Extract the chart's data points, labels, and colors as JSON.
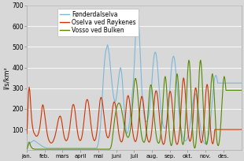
{
  "title_ylabel": "l/s/km²",
  "ylim": [
    0,
    700
  ],
  "yticks": [
    100,
    200,
    300,
    400,
    500,
    600,
    700
  ],
  "months": [
    "jan.",
    "feb.",
    "mars",
    "april",
    "mai",
    "juni",
    "juli",
    "aug.",
    "sep.",
    "okt.",
    "nov.",
    "des."
  ],
  "legend": [
    {
      "label": "Fønderdalselva",
      "color": "#7ab8d9"
    },
    {
      "label": "Oselva ved Røykenes",
      "color": "#cc3300"
    },
    {
      "label": "Vosso ved Bulken",
      "color": "#558800"
    }
  ],
  "background_color": "#d8d8d8",
  "grid_color": "#ffffff",
  "fonderdalselva": [
    20,
    22,
    25,
    28,
    30,
    32,
    35,
    38,
    40,
    42,
    44,
    46,
    48,
    46,
    44,
    42,
    40,
    38,
    36,
    34,
    32,
    30,
    28,
    26,
    24,
    22,
    20,
    18,
    16,
    15,
    14,
    13,
    12,
    11,
    11,
    10,
    10,
    10,
    10,
    10,
    10,
    10,
    10,
    10,
    10,
    10,
    10,
    10,
    10,
    10,
    10,
    10,
    10,
    10,
    10,
    10,
    10,
    10,
    10,
    10,
    10,
    10,
    10,
    10,
    10,
    10,
    10,
    10,
    10,
    10,
    10,
    10,
    10,
    10,
    10,
    10,
    10,
    10,
    10,
    10,
    10,
    10,
    10,
    10,
    10,
    10,
    10,
    10,
    10,
    10,
    10,
    10,
    10,
    10,
    10,
    10,
    10,
    10,
    10,
    10,
    10,
    10,
    10,
    10,
    10,
    10,
    10,
    10,
    10,
    10,
    10,
    10,
    10,
    10,
    10,
    10,
    10,
    10,
    10,
    10,
    20,
    30,
    45,
    65,
    90,
    120,
    160,
    200,
    250,
    300,
    350,
    390,
    430,
    460,
    480,
    490,
    500,
    510,
    500,
    480,
    460,
    430,
    400,
    370,
    340,
    310,
    285,
    265,
    250,
    240,
    235,
    240,
    255,
    275,
    300,
    325,
    350,
    375,
    390,
    400,
    390,
    370,
    340,
    300,
    255,
    210,
    170,
    135,
    110,
    90,
    80,
    85,
    95,
    110,
    130,
    155,
    180,
    210,
    240,
    270,
    300,
    340,
    390,
    450,
    520,
    590,
    640,
    675,
    680,
    660,
    620,
    565,
    500,
    435,
    370,
    310,
    260,
    220,
    190,
    170,
    155,
    145,
    140,
    138,
    140,
    145,
    155,
    170,
    190,
    215,
    245,
    280,
    320,
    360,
    400,
    430,
    455,
    470,
    475,
    470,
    455,
    430,
    400,
    365,
    325,
    285,
    248,
    215,
    185,
    160,
    140,
    125,
    115,
    108,
    105,
    108,
    115,
    128,
    145,
    168,
    195,
    228,
    265,
    305,
    345,
    382,
    412,
    435,
    450,
    455,
    450,
    435,
    410,
    380,
    345,
    308,
    270,
    232,
    197,
    167,
    140,
    118,
    100,
    85,
    72,
    62,
    54,
    49,
    46,
    45,
    46,
    49,
    55,
    63,
    74,
    88,
    105,
    124,
    145,
    168,
    192,
    215,
    235,
    252,
    265,
    272,
    274,
    270,
    260,
    245,
    226,
    203,
    178,
    153,
    128,
    106,
    87,
    71,
    58,
    48,
    40,
    35,
    32,
    31,
    33,
    37,
    43,
    52,
    64,
    80,
    100,
    123,
    150,
    180,
    213,
    248,
    280,
    310,
    335,
    350,
    360,
    362,
    357,
    344,
    325
  ],
  "oselva": [
    80,
    130,
    200,
    280,
    305,
    290,
    250,
    200,
    160,
    130,
    110,
    95,
    85,
    80,
    75,
    70,
    68,
    68,
    70,
    75,
    83,
    95,
    110,
    130,
    155,
    180,
    210,
    220,
    215,
    200,
    180,
    158,
    135,
    112,
    92,
    75,
    62,
    52,
    45,
    40,
    37,
    35,
    35,
    37,
    40,
    45,
    52,
    60,
    70,
    82,
    95,
    110,
    125,
    140,
    152,
    160,
    165,
    165,
    158,
    145,
    128,
    108,
    88,
    72,
    60,
    52,
    47,
    46,
    48,
    53,
    62,
    75,
    92,
    112,
    135,
    160,
    185,
    205,
    218,
    222,
    218,
    205,
    185,
    160,
    135,
    110,
    90,
    73,
    60,
    52,
    47,
    47,
    51,
    60,
    73,
    92,
    115,
    142,
    170,
    198,
    222,
    238,
    245,
    245,
    237,
    222,
    200,
    175,
    148,
    122,
    99,
    80,
    65,
    55,
    48,
    46,
    49,
    57,
    71,
    90,
    115,
    145,
    177,
    208,
    234,
    250,
    256,
    252,
    238,
    217,
    192,
    165,
    139,
    115,
    95,
    80,
    68,
    62,
    60,
    63,
    72,
    87,
    108,
    133,
    160,
    187,
    210,
    226,
    234,
    233,
    224,
    207,
    185,
    160,
    133,
    108,
    86,
    68,
    55,
    46,
    41,
    40,
    44,
    54,
    70,
    92,
    120,
    153,
    188,
    220,
    245,
    260,
    265,
    258,
    242,
    220,
    193,
    163,
    134,
    108,
    86,
    68,
    55,
    46,
    42,
    43,
    50,
    63,
    82,
    108,
    138,
    171,
    204,
    232,
    252,
    261,
    258,
    245,
    224,
    197,
    168,
    139,
    112,
    89,
    70,
    55,
    45,
    40,
    39,
    44,
    54,
    71,
    94,
    123,
    157,
    193,
    227,
    255,
    276,
    287,
    287,
    277,
    257,
    230,
    197,
    163,
    130,
    100,
    75,
    55,
    40,
    31,
    28,
    31,
    40,
    57,
    80,
    110,
    145,
    183,
    220,
    252,
    275,
    285,
    283,
    269,
    244,
    212,
    176,
    140,
    107,
    79,
    57,
    41,
    31,
    28,
    31,
    42,
    60,
    86,
    120,
    163,
    213,
    262,
    305,
    336,
    350,
    342,
    316,
    277,
    232,
    186,
    143,
    107,
    79,
    59,
    47,
    43,
    47,
    60,
    82,
    113,
    152,
    197,
    241,
    278,
    300,
    302,
    285,
    252,
    209,
    163,
    120,
    84,
    59,
    43,
    36,
    38,
    50,
    71,
    103,
    143,
    190,
    238,
    280,
    309,
    319,
    309,
    281,
    240,
    190,
    140,
    97,
    64,
    43,
    32,
    32,
    43,
    65,
    100
  ],
  "vosso": [
    5,
    10,
    20,
    35,
    40,
    35,
    25,
    18,
    14,
    10,
    8,
    7,
    6,
    5,
    5,
    5,
    5,
    5,
    5,
    5,
    5,
    5,
    5,
    5,
    5,
    5,
    5,
    5,
    5,
    5,
    5,
    5,
    5,
    5,
    5,
    5,
    5,
    5,
    5,
    5,
    5,
    5,
    5,
    5,
    5,
    5,
    5,
    5,
    5,
    5,
    5,
    5,
    5,
    5,
    5,
    5,
    5,
    5,
    5,
    5,
    5,
    5,
    5,
    5,
    5,
    5,
    5,
    5,
    5,
    5,
    5,
    5,
    5,
    5,
    5,
    5,
    5,
    5,
    5,
    5,
    5,
    5,
    5,
    5,
    5,
    5,
    5,
    5,
    5,
    5,
    5,
    5,
    5,
    5,
    5,
    5,
    5,
    5,
    5,
    5,
    5,
    5,
    5,
    5,
    5,
    5,
    5,
    5,
    5,
    5,
    5,
    5,
    5,
    5,
    5,
    5,
    5,
    5,
    5,
    5,
    5,
    5,
    5,
    5,
    5,
    5,
    5,
    5,
    5,
    5,
    5,
    5,
    5,
    5,
    5,
    5,
    5,
    5,
    5,
    5,
    5,
    5,
    10,
    18,
    30,
    50,
    75,
    100,
    125,
    148,
    168,
    185,
    200,
    212,
    220,
    225,
    228,
    228,
    225,
    218,
    208,
    195,
    180,
    163,
    145,
    128,
    112,
    98,
    85,
    75,
    68,
    63,
    62,
    65,
    73,
    86,
    105,
    130,
    162,
    198,
    238,
    277,
    310,
    335,
    347,
    346,
    334,
    312,
    281,
    246,
    210,
    174,
    141,
    112,
    88,
    68,
    54,
    45,
    40,
    38,
    42,
    51,
    65,
    86,
    115,
    150,
    191,
    234,
    272,
    300,
    315,
    316,
    303,
    278,
    246,
    210,
    174,
    140,
    110,
    85,
    65,
    50,
    40,
    35,
    34,
    39,
    50,
    68,
    95,
    130,
    175,
    226,
    276,
    319,
    348,
    357,
    343,
    310,
    265,
    214,
    162,
    115,
    76,
    48,
    30,
    22,
    25,
    38,
    64,
    103,
    154,
    214,
    273,
    323,
    357,
    370,
    359,
    327,
    280,
    225,
    169,
    118,
    78,
    49,
    33,
    27,
    33,
    50,
    80,
    123,
    180,
    246,
    315,
    376,
    418,
    436,
    427,
    390,
    330,
    257,
    183,
    118,
    67,
    34,
    16,
    10,
    16,
    34,
    67,
    118,
    183,
    257,
    330,
    390,
    427,
    436,
    418,
    376,
    315,
    246,
    180,
    123,
    80,
    50,
    33,
    27,
    33,
    49,
    78,
    118,
    169,
    225,
    280,
    327,
    359,
    370,
    357,
    323,
    273,
    214,
    154,
    103,
    64,
    38,
    25,
    22,
    30,
    48,
    76,
    115,
    162,
    214,
    265,
    310,
    343,
    357,
    348,
    323,
    290
  ]
}
